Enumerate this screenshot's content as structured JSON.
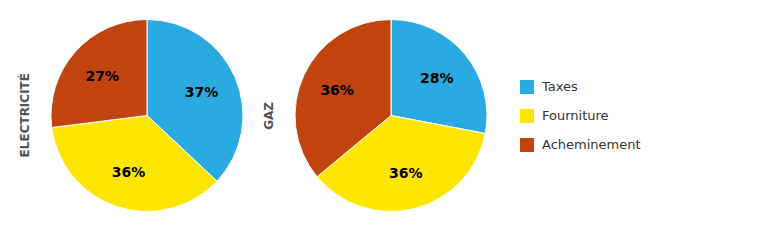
{
  "chart_data": [
    {
      "type": "pie",
      "title": "ELECTRICITÉ",
      "categories": [
        "Taxes",
        "Fourniture",
        "Acheminement"
      ],
      "values": [
        37,
        36,
        27
      ],
      "value_labels": [
        "37%",
        "36%",
        "27%"
      ],
      "colors": [
        "#29ABE2",
        "#FFE600",
        "#C1440E"
      ],
      "data_labels": true
    },
    {
      "type": "pie",
      "title": "GAZ",
      "categories": [
        "Taxes",
        "Fourniture",
        "Acheminement"
      ],
      "values": [
        28,
        36,
        36
      ],
      "value_labels": [
        "28%",
        "36%",
        "36%"
      ],
      "colors": [
        "#29ABE2",
        "#FFE600",
        "#C1440E"
      ],
      "data_labels": true,
      "legend": "right"
    }
  ]
}
